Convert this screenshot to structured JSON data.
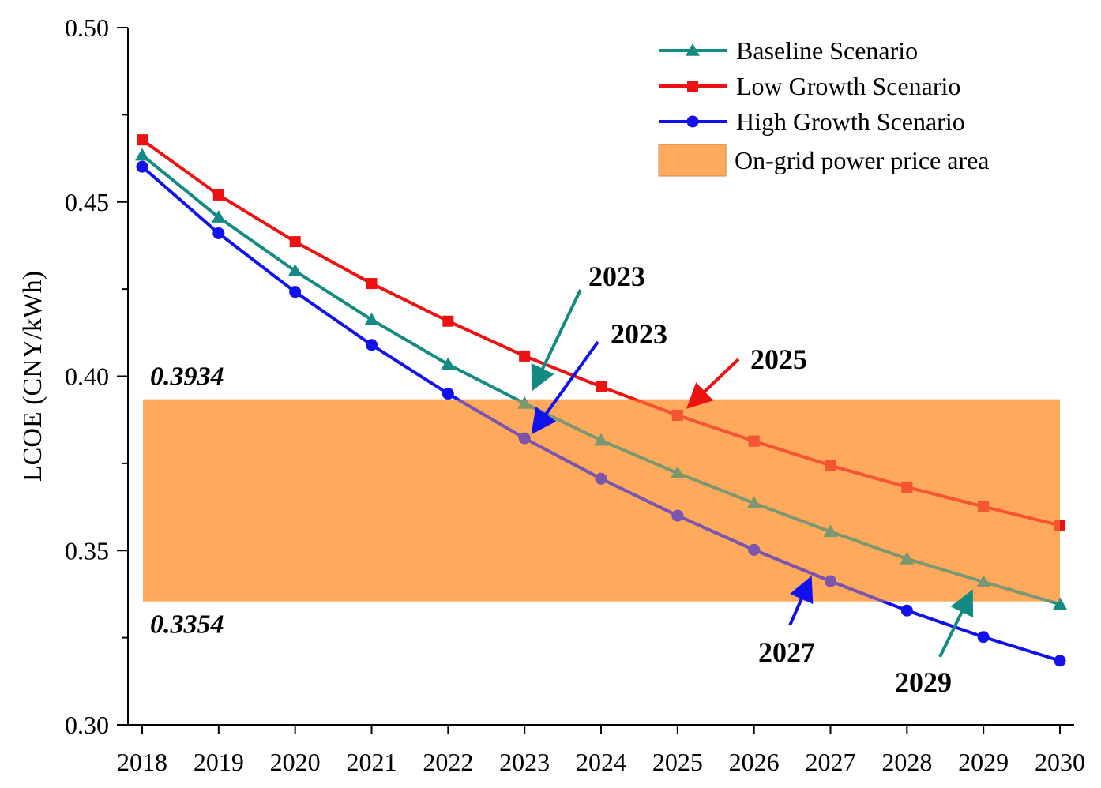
{
  "chart_data": {
    "type": "line",
    "title": "",
    "xlabel": "",
    "ylabel": "LCOE (CNY/kWh)",
    "x": [
      2018,
      2019,
      2020,
      2021,
      2022,
      2023,
      2024,
      2025,
      2026,
      2027,
      2028,
      2029,
      2030
    ],
    "xlim": [
      2018,
      2030
    ],
    "ylim": [
      0.3,
      0.5
    ],
    "yticks": [
      "0.30",
      "0.35",
      "0.40",
      "0.45",
      "0.50"
    ],
    "grid": false,
    "legend_position": "top-right",
    "series": [
      {
        "name": "Baseline Scenario",
        "color": "#138B82",
        "marker": "triangle",
        "values": [
          0.4634,
          0.4456,
          0.4302,
          0.4162,
          0.4034,
          0.3922,
          0.3816,
          0.3722,
          0.3636,
          0.3554,
          0.3476,
          0.341,
          0.3346
        ]
      },
      {
        "name": "Low Growth Scenario",
        "color": "#EE1111",
        "marker": "square",
        "values": [
          0.4678,
          0.452,
          0.4386,
          0.4266,
          0.4158,
          0.4058,
          0.397,
          0.3888,
          0.3814,
          0.3744,
          0.3682,
          0.3626,
          0.3572
        ]
      },
      {
        "name": "High Growth Scenario",
        "color": "#1111EE",
        "marker": "circle",
        "values": [
          0.4601,
          0.441,
          0.4242,
          0.409,
          0.395,
          0.3822,
          0.3706,
          0.36,
          0.3502,
          0.3412,
          0.3328,
          0.3252,
          0.3184
        ]
      }
    ],
    "band": {
      "name": "On-grid power price area",
      "color": "#FFA95C",
      "upper": 0.3934,
      "lower": 0.3354,
      "upper_label": "0.3934",
      "lower_label": "0.3354"
    },
    "annotations": [
      {
        "text": "2023",
        "color": "#138B82",
        "series": "Baseline Scenario"
      },
      {
        "text": "2023",
        "color": "#1111EE",
        "series": "High Growth Scenario"
      },
      {
        "text": "2025",
        "color": "#EE1111",
        "series": "Low Growth Scenario"
      },
      {
        "text": "2027",
        "color": "#1111EE",
        "series": "High Growth Scenario"
      },
      {
        "text": "2029",
        "color": "#138B82",
        "series": "Baseline Scenario"
      }
    ]
  }
}
